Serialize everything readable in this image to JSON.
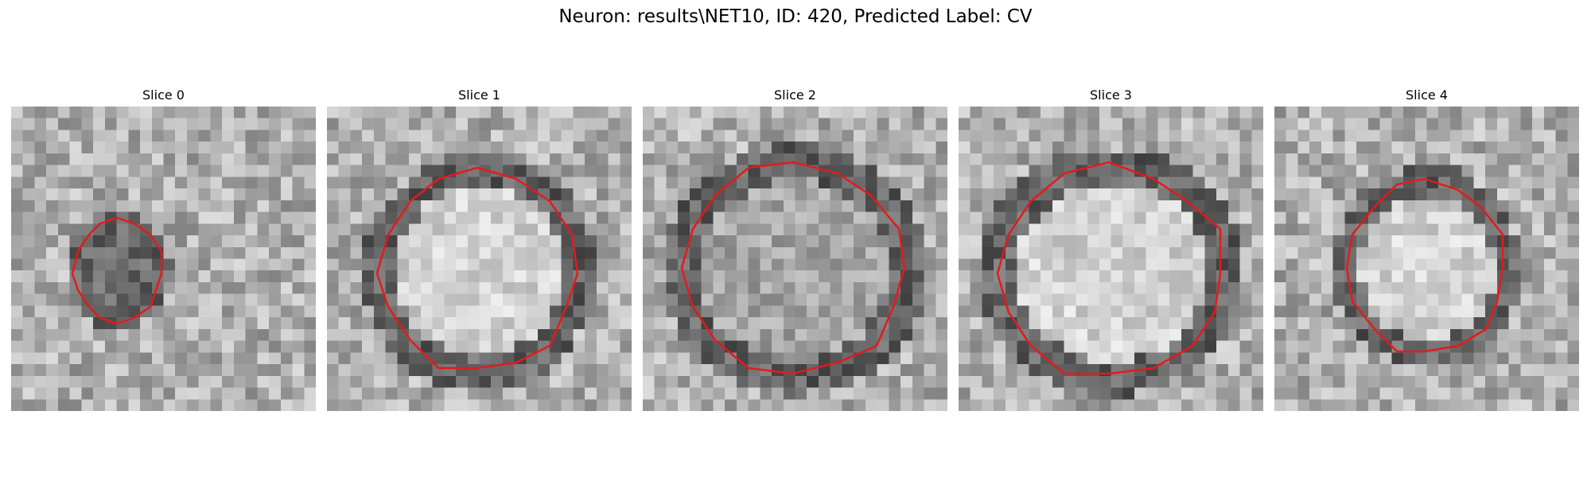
{
  "figure": {
    "title": "Neuron: results\\NET10, ID: 420, Predicted Label: CV"
  },
  "contour_color": "#e41a1c",
  "panels": [
    {
      "title": "Slice 0",
      "seed": 11,
      "center_tone": "dark"
    },
    {
      "title": "Slice 1",
      "seed": 23,
      "center_tone": "light"
    },
    {
      "title": "Slice 2",
      "seed": 37,
      "center_tone": "mid"
    },
    {
      "title": "Slice 3",
      "seed": 41,
      "center_tone": "light"
    },
    {
      "title": "Slice 4",
      "seed": 53,
      "center_tone": "light"
    }
  ]
}
